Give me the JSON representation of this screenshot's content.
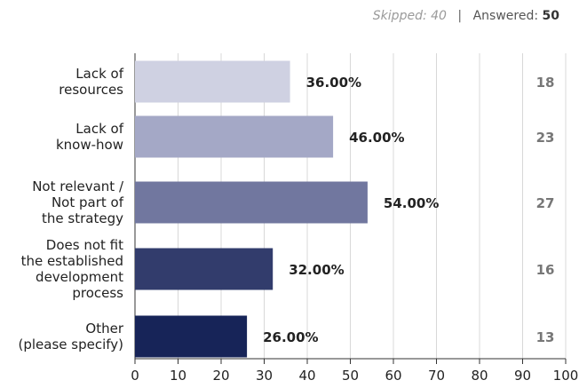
{
  "summary": {
    "skipped_label": "Skipped:",
    "skipped_value": "40",
    "separator": "|",
    "answered_label": "Answered:",
    "answered_value": "50"
  },
  "chart_data": {
    "type": "bar",
    "orientation": "horizontal",
    "categories": [
      [
        "Lack of",
        "resources"
      ],
      [
        "Lack of",
        "know-how"
      ],
      [
        "Not relevant /",
        "Not part of",
        "the strategy"
      ],
      [
        "Does not fit",
        "the established",
        "development",
        "process"
      ],
      [
        "Other",
        "(please specify)"
      ]
    ],
    "values": [
      36,
      46,
      54,
      32,
      26
    ],
    "value_labels": [
      "36.00%",
      "46.00%",
      "54.00%",
      "32.00%",
      "26.00%"
    ],
    "counts": [
      "18",
      "23",
      "27",
      "16",
      "13"
    ],
    "colors": [
      "#cfd1e2",
      "#a4a8c6",
      "#71779f",
      "#323c6c",
      "#172458"
    ],
    "xlim": [
      0,
      100
    ],
    "xticks": [
      "0",
      "10",
      "20",
      "30",
      "40",
      "50",
      "60",
      "70",
      "80",
      "90",
      "100"
    ],
    "grid": true
  }
}
